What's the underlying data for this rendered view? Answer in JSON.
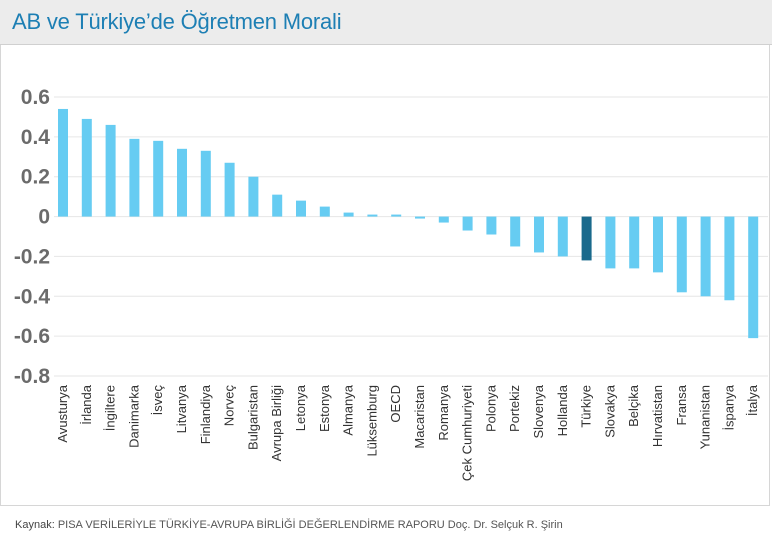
{
  "title": "AB ve Türkiye’de Öğretmen Morali",
  "source": {
    "label": "Kaynak:",
    "text": "PISA VERİLERİYLE  TÜRKİYE-AVRUPA BİRLİĞİ  DEĞERLENDİRME RAPORU Doç. Dr. Selçuk R. Şirin"
  },
  "colors": {
    "bar": "#66ccf2",
    "highlight": "#1a6a8c",
    "title": "#1d7fb4",
    "grid": "#e6e6e6",
    "tick_text": "#6b6b6b"
  },
  "chart_data": {
    "type": "bar",
    "title": "AB ve Türkiye’de Öğretmen Morali",
    "xlabel": "",
    "ylabel": "",
    "ylim": [
      -0.8,
      0.6
    ],
    "yticks": [
      0.6,
      0.4,
      0.2,
      0,
      -0.2,
      -0.4,
      -0.6,
      -0.8
    ],
    "ytick_labels": [
      "0.6",
      "0.4",
      "0.2",
      "0",
      "-0.2",
      "-0.4",
      "-0.6",
      "-0.8"
    ],
    "grid": true,
    "highlight_category": "Türkiye",
    "categories": [
      "Avusturya",
      "İrlanda",
      "İngiltere",
      "Danimarka",
      "İsveç",
      "Litvanya",
      "Finlandiya",
      "Norveç",
      "Bulgaristan",
      "Avrupa Birliği",
      "Letonya",
      "Estonya",
      "Almanya",
      "Lüksemburg",
      "OECD",
      "Macaristan",
      "Romanya",
      "Çek Cumhuriyeti",
      "Polonya",
      "Portekiz",
      "Slovenya",
      "Hollanda",
      "Türkiye",
      "Slovakya",
      "Belçika",
      "Hırvatistan",
      "Fransa",
      "Yunanistan",
      "İspanya",
      "İtalya"
    ],
    "values": [
      0.54,
      0.49,
      0.46,
      0.39,
      0.38,
      0.34,
      0.33,
      0.27,
      0.2,
      0.11,
      0.08,
      0.05,
      0.02,
      0.01,
      0.01,
      -0.01,
      -0.03,
      -0.07,
      -0.09,
      -0.15,
      -0.18,
      -0.2,
      -0.22,
      -0.26,
      -0.26,
      -0.28,
      -0.38,
      -0.4,
      -0.42,
      -0.61
    ]
  }
}
